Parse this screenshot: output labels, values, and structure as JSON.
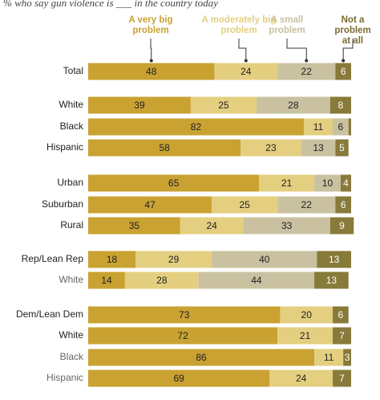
{
  "chart_data": {
    "type": "stacked-bar-horizontal",
    "subtitle": "% who say gun violence is ___ in the country today",
    "categories": [
      "Total",
      "White",
      "Black",
      "Hispanic",
      "Urban",
      "Suburban",
      "Rural",
      "Rep/Lean Rep",
      "White",
      "Dem/Lean Dem",
      "White",
      "Black",
      "Hispanic"
    ],
    "series": [
      {
        "name": "A very big problem",
        "color": "#c9a232",
        "values": [
          48,
          39,
          82,
          58,
          65,
          47,
          35,
          18,
          14,
          73,
          72,
          86,
          69
        ]
      },
      {
        "name": "A moderately big problem",
        "color": "#e4cf80",
        "values": [
          24,
          25,
          11,
          23,
          21,
          25,
          24,
          29,
          28,
          20,
          21,
          11,
          24
        ]
      },
      {
        "name": "A small problem",
        "color": "#c9c1a0",
        "values": [
          22,
          28,
          6,
          13,
          10,
          22,
          33,
          40,
          44,
          null,
          null,
          null,
          null
        ]
      },
      {
        "name": "Not a problem at all",
        "color": "#877a3a",
        "values": [
          6,
          8,
          1,
          5,
          4,
          6,
          9,
          13,
          13,
          6,
          7,
          3,
          7
        ],
        "value_labels": [
          "6",
          "8",
          null,
          "5",
          "4",
          "6",
          "9",
          "13",
          "13",
          "6",
          "7",
          "3",
          "7"
        ]
      }
    ]
  }
}
